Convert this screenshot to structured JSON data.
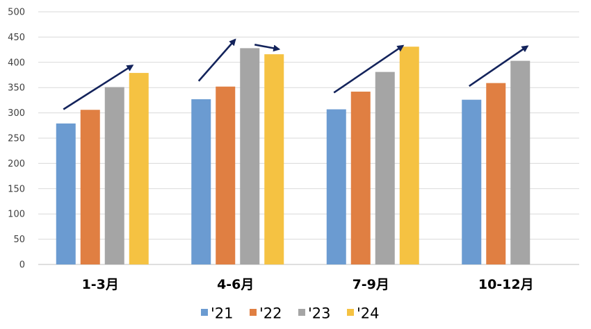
{
  "chart_data": {
    "type": "bar",
    "categories": [
      "1-3月",
      "4-6月",
      "7-9月",
      "10-12月"
    ],
    "series": [
      {
        "name": "'21",
        "values": [
          279,
          327,
          307,
          326
        ],
        "color": "#6B9BD1"
      },
      {
        "name": "'22",
        "values": [
          306,
          352,
          342,
          359
        ],
        "color": "#E07F42"
      },
      {
        "name": "'23",
        "values": [
          351,
          428,
          381,
          403
        ],
        "color": "#A5A5A5"
      },
      {
        "name": "'24",
        "values": [
          379,
          416,
          431,
          null
        ],
        "color": "#F5C242"
      }
    ],
    "ylim": [
      0,
      500
    ],
    "yticks": [
      0,
      50,
      100,
      150,
      200,
      250,
      300,
      350,
      400,
      450,
      500
    ],
    "grid": true,
    "legend_position": "bottom",
    "title": "",
    "xlabel": "",
    "ylabel": "",
    "annotations": {
      "type": "trend-arrows",
      "color": "#13235B",
      "arrows": [
        {
          "category": "1-3月",
          "from": [
            -0.8,
            307
          ],
          "to": [
            0.62,
            394
          ]
        },
        {
          "category": "4-6月",
          "from": [
            -0.8,
            363
          ],
          "to": [
            -0.05,
            445
          ]
        },
        {
          "category": "4-6月",
          "from": [
            0.35,
            435
          ],
          "to": [
            0.85,
            426
          ]
        },
        {
          "category": "7-9月",
          "from": [
            -0.8,
            340
          ],
          "to": [
            0.62,
            433
          ]
        },
        {
          "category": "10-12月",
          "from": [
            -0.8,
            353
          ],
          "to": [
            0.4,
            432
          ]
        }
      ]
    }
  }
}
